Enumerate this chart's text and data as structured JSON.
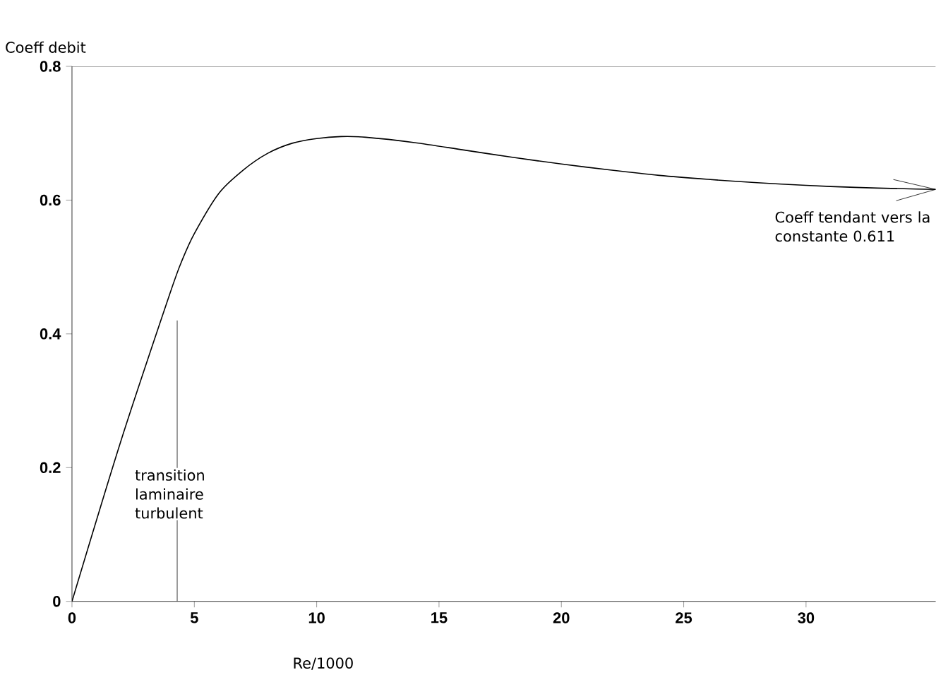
{
  "chart_data": {
    "type": "line",
    "ylabel": "Coeff debit",
    "xlabel": "Re/1000",
    "x": [
      0,
      2,
      4,
      4.5,
      5,
      6,
      7,
      8,
      9,
      10,
      11,
      12,
      14,
      16,
      18,
      20,
      22,
      24,
      26,
      28,
      30,
      32,
      34,
      35.3
    ],
    "series": [
      {
        "color": "#000000",
        "values": [
          0,
          0.24,
          0.46,
          0.51,
          0.55,
          0.61,
          0.645,
          0.67,
          0.685,
          0.692,
          0.695,
          0.694,
          0.686,
          0.675,
          0.664,
          0.654,
          0.645,
          0.637,
          0.631,
          0.626,
          0.622,
          0.619,
          0.617,
          0.616
        ]
      }
    ],
    "xlim": [
      0,
      35.3
    ],
    "ylim": [
      0,
      0.8
    ],
    "xticks": [
      0,
      5,
      10,
      15,
      20,
      25,
      30
    ],
    "yticks": [
      0,
      0.2,
      0.4,
      0.6,
      0.8
    ],
    "ref_lines": [
      {
        "axis": "x",
        "value": 4.3,
        "label": "transition laminaire turbulent",
        "color": "#000000"
      }
    ],
    "annotations": [
      {
        "text": "Coeff tendant vers la constante 0.611",
        "x": 35.3,
        "y": 0.616
      }
    ],
    "grid": false,
    "marker": "none",
    "line_style": "solid"
  }
}
